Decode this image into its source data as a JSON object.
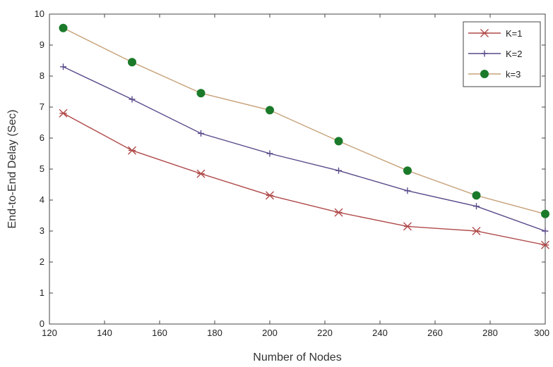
{
  "chart_data": {
    "type": "line",
    "title": "",
    "xlabel": "Number of Nodes",
    "ylabel": "End-to-End Delay (Sec)",
    "xlim": [
      120,
      300
    ],
    "ylim": [
      0,
      10
    ],
    "xticks": [
      120,
      140,
      160,
      180,
      200,
      220,
      240,
      260,
      280,
      300
    ],
    "yticks": [
      0,
      1,
      2,
      3,
      4,
      5,
      6,
      7,
      8,
      9,
      10
    ],
    "x": [
      125,
      150,
      175,
      200,
      225,
      250,
      275,
      300
    ],
    "grid": false,
    "legend_position": "top-right",
    "series": [
      {
        "name": "K=1",
        "values": [
          6.8,
          5.6,
          4.85,
          4.15,
          3.6,
          3.15,
          3.0,
          2.55
        ],
        "color": "#b04a4a",
        "marker": "star"
      },
      {
        "name": "K=2",
        "values": [
          8.3,
          7.25,
          6.15,
          5.5,
          4.95,
          4.3,
          3.8,
          3.0
        ],
        "color": "#5a4a8a",
        "marker": "plus"
      },
      {
        "name": "k=3",
        "values": [
          9.55,
          8.45,
          7.45,
          6.9,
          5.9,
          4.95,
          4.15,
          3.55
        ],
        "color": "#1a7a2a",
        "marker": "circle",
        "line_color": "#c7a27a"
      }
    ]
  }
}
